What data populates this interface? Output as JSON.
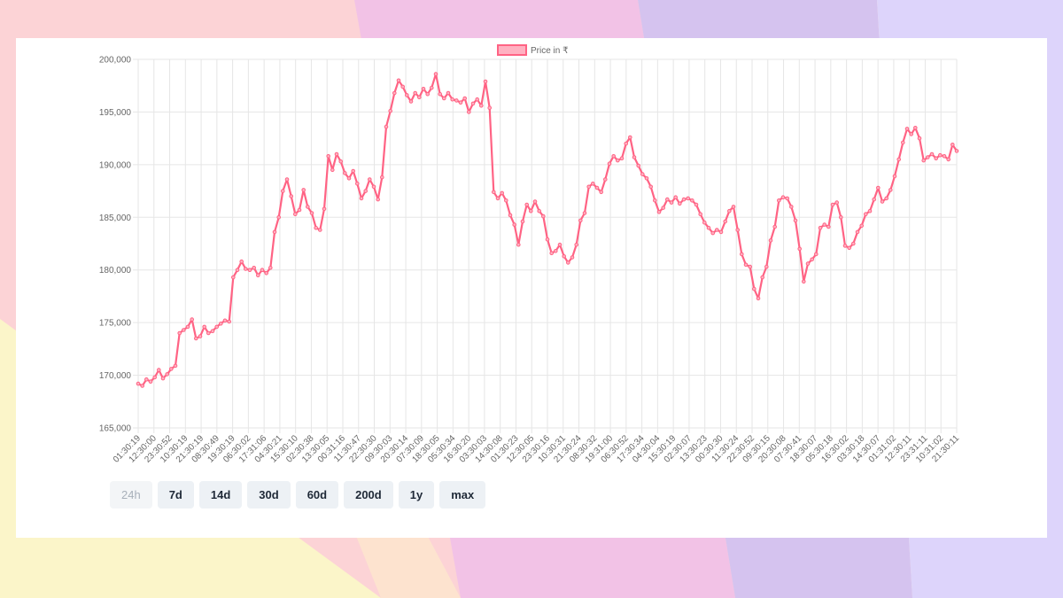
{
  "colors": {
    "line": "#ff6384",
    "fill": "#ffb1c1",
    "grid": "#e6e6e6",
    "tick_text": "#666666",
    "button_bg": "#edf1f5",
    "button_text": "#1f2937",
    "card": "#ffffff"
  },
  "chart_data": {
    "type": "line",
    "title": "",
    "legend": {
      "label": "Price in ₹",
      "placement": "top-center"
    },
    "ylim": [
      165000,
      200000
    ],
    "yticks": [
      "200,000",
      "195,000",
      "190,000",
      "185,000",
      "180,000",
      "175,000",
      "170,000",
      "165,000"
    ],
    "ytick_values": [
      200000,
      195000,
      190000,
      185000,
      180000,
      175000,
      170000,
      165000
    ],
    "x_tick_labels": [
      "01:30:19",
      "12:30:00",
      "23:30:52",
      "10:30:19",
      "21:30:19",
      "08:30:49",
      "19:30:19",
      "06:30:02",
      "17:31:06",
      "04:30:21",
      "15:30:10",
      "02:30:38",
      "13:30:05",
      "00:31:16",
      "11:30:47",
      "22:30:30",
      "09:30:03",
      "20:30:14",
      "07:30:09",
      "18:30:05",
      "05:30:34",
      "16:30:20",
      "03:30:03",
      "14:30:08",
      "01:30:23",
      "12:30:05",
      "23:30:16",
      "10:30:31",
      "21:30:24",
      "08:30:32",
      "19:31:00",
      "06:30:52",
      "17:30:34",
      "04:30:04",
      "15:30:19",
      "02:30:07",
      "13:30:23",
      "00:30:30",
      "11:30:24",
      "22:30:52",
      "09:30:15",
      "20:30:08",
      "07:30:41",
      "18:30:07",
      "05:30:18",
      "16:30:02",
      "03:30:18",
      "14:30:07",
      "01:31:02",
      "12:30:11",
      "23:31:11",
      "10:31:02",
      "21:30:11"
    ],
    "grid": true,
    "series": [
      {
        "name": "Price in ₹",
        "values": [
          169200,
          169000,
          169600,
          169400,
          169800,
          170500,
          169700,
          170100,
          170600,
          170900,
          174000,
          174300,
          174600,
          175300,
          173500,
          173700,
          174600,
          174000,
          174200,
          174600,
          174900,
          175200,
          175100,
          179300,
          180000,
          180800,
          180100,
          180000,
          180200,
          179500,
          180000,
          179700,
          180200,
          183600,
          185000,
          187500,
          188600,
          187000,
          185300,
          185700,
          187600,
          186000,
          185400,
          184000,
          183800,
          185800,
          190800,
          189500,
          191000,
          190300,
          189200,
          188700,
          189400,
          188200,
          186800,
          187500,
          188600,
          187900,
          186700,
          188800,
          193600,
          195100,
          196800,
          198000,
          197400,
          196600,
          196000,
          196800,
          196400,
          197200,
          196700,
          197300,
          198600,
          196700,
          196300,
          196800,
          196200,
          196100,
          195900,
          196300,
          195000,
          195800,
          196200,
          195600,
          197900,
          195400,
          187400,
          186800,
          187300,
          186600,
          185200,
          184300,
          182400,
          184600,
          186200,
          185600,
          186500,
          185600,
          185100,
          182900,
          181600,
          181800,
          182400,
          181300,
          180700,
          181200,
          182400,
          184700,
          185400,
          187900,
          188200,
          187800,
          187400,
          188600,
          190100,
          190800,
          190400,
          190600,
          192000,
          192600,
          190700,
          189900,
          189100,
          188700,
          187900,
          186600,
          185500,
          185900,
          186700,
          186400,
          186900,
          186300,
          186700,
          186800,
          186600,
          186200,
          185300,
          184500,
          184000,
          183500,
          183800,
          183600,
          184600,
          185600,
          186000,
          183800,
          181500,
          180500,
          180300,
          178200,
          177300,
          179300,
          180300,
          182800,
          184100,
          186600,
          186900,
          186800,
          186000,
          184700,
          182000,
          178900,
          180600,
          181000,
          181500,
          184000,
          184300,
          184100,
          186200,
          186400,
          185000,
          182300,
          182100,
          182500,
          183600,
          184200,
          185300,
          185600,
          186700,
          187800,
          186500,
          186800,
          187600,
          188900,
          190500,
          192100,
          193400,
          192900,
          193500,
          192500,
          190400,
          190700,
          191000,
          190600,
          190900,
          190800,
          190500,
          191900,
          191300
        ]
      }
    ]
  },
  "controls": {
    "ranges": [
      {
        "label": "24h",
        "disabled": true
      },
      {
        "label": "7d",
        "disabled": false
      },
      {
        "label": "14d",
        "disabled": false
      },
      {
        "label": "30d",
        "disabled": false
      },
      {
        "label": "60d",
        "disabled": false
      },
      {
        "label": "200d",
        "disabled": false
      },
      {
        "label": "1y",
        "disabled": false
      },
      {
        "label": "max",
        "disabled": false
      }
    ]
  }
}
